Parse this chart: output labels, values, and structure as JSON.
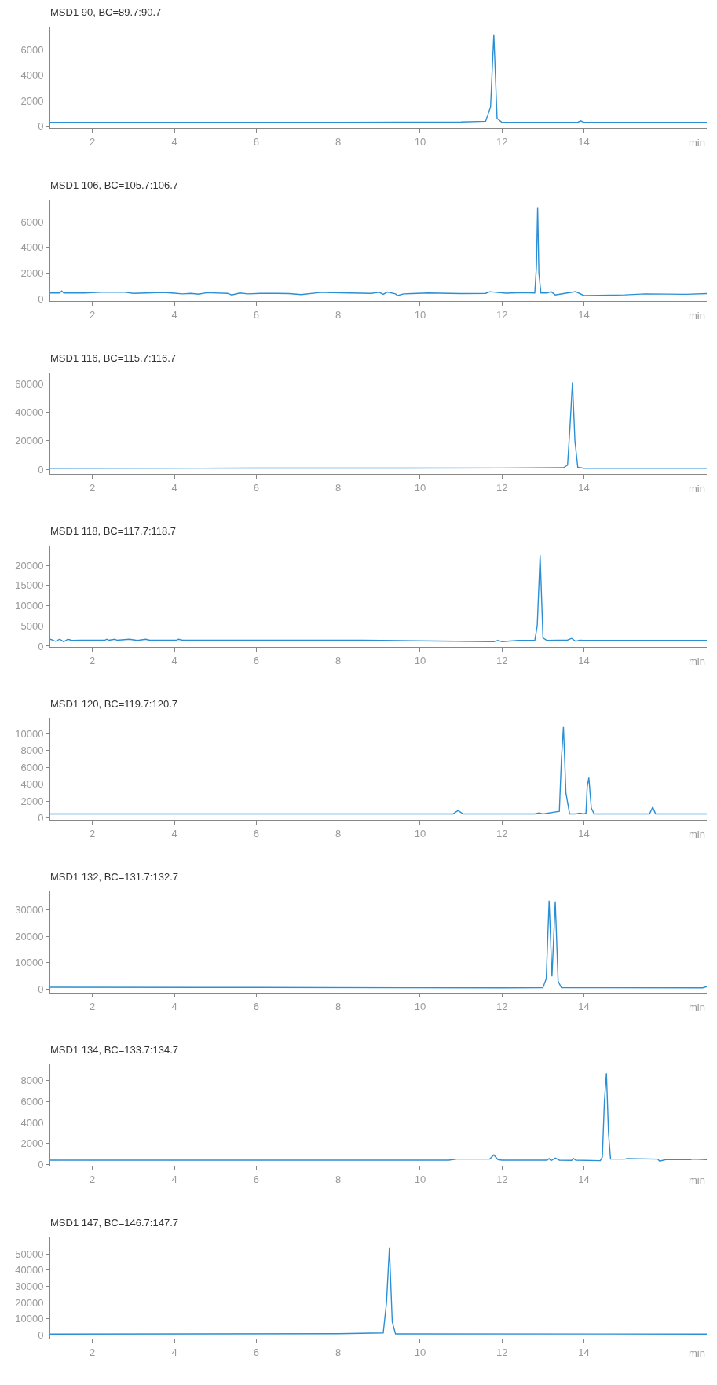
{
  "chart_data": [
    {
      "type": "line",
      "title": "MSD1 90, BC=89.7:90.7",
      "xlabel": "min",
      "color": "#2a8fd4",
      "xlim": [
        0.97,
        17.0
      ],
      "xticks": [
        2,
        4,
        6,
        8,
        10,
        12,
        14
      ],
      "ylim": [
        -150,
        7800
      ],
      "yticks": [
        0,
        2000,
        4000,
        6000
      ],
      "x": [
        0.97,
        2,
        4,
        6,
        8,
        10,
        11,
        11.6,
        11.72,
        11.8,
        11.88,
        12.0,
        13.85,
        13.92,
        14.0,
        17.0
      ],
      "values": [
        300,
        300,
        300,
        300,
        300,
        320,
        330,
        380,
        1500,
        7200,
        600,
        300,
        300,
        420,
        300,
        300
      ]
    },
    {
      "type": "line",
      "title": "MSD1 106, BC=105.7:106.7",
      "xlabel": "min",
      "color": "#2a8fd4",
      "xlim": [
        0.97,
        17.0
      ],
      "xticks": [
        2,
        4,
        6,
        8,
        10,
        12,
        14
      ],
      "ylim": [
        -180,
        7730
      ],
      "yticks": [
        0,
        2000,
        4000,
        6000
      ],
      "x": [
        0.97,
        1.2,
        1.25,
        1.3,
        1.8,
        2.2,
        2.8,
        3.0,
        3.6,
        3.8,
        4.0,
        4.2,
        4.4,
        4.6,
        4.8,
        5.3,
        5.4,
        5.6,
        5.8,
        6.1,
        6.5,
        6.8,
        7.1,
        7.6,
        7.8,
        8.3,
        8.8,
        9.0,
        9.1,
        9.2,
        9.4,
        9.45,
        9.6,
        9.8,
        10.2,
        11.0,
        11.6,
        11.7,
        12.1,
        12.5,
        12.8,
        12.84,
        12.87,
        12.9,
        12.95,
        13.1,
        13.2,
        13.3,
        13.5,
        13.8,
        14.0,
        15.0,
        15.5,
        16.5,
        17.0
      ],
      "values": [
        450,
        450,
        600,
        450,
        450,
        500,
        500,
        420,
        480,
        480,
        430,
        380,
        420,
        360,
        470,
        420,
        300,
        450,
        380,
        420,
        420,
        400,
        330,
        500,
        480,
        450,
        420,
        500,
        350,
        520,
        380,
        250,
        380,
        400,
        450,
        400,
        420,
        550,
        430,
        480,
        450,
        2500,
        7150,
        2000,
        450,
        450,
        550,
        300,
        400,
        550,
        250,
        300,
        380,
        350,
        400
      ]
    },
    {
      "type": "line",
      "title": "MSD1 116, BC=115.7:116.7",
      "xlabel": "min",
      "color": "#2a8fd4",
      "xlim": [
        0.97,
        17.0
      ],
      "xticks": [
        2,
        4,
        6,
        8,
        10,
        12,
        14
      ],
      "ylim": [
        -3200,
        67700
      ],
      "yticks": [
        0,
        20000,
        40000,
        60000
      ],
      "x": [
        0.97,
        6,
        12,
        13.5,
        13.6,
        13.66,
        13.72,
        13.78,
        13.85,
        14.0,
        17.0
      ],
      "values": [
        800,
        900,
        1000,
        1200,
        3000,
        30000,
        61000,
        20000,
        1500,
        800,
        700
      ]
    },
    {
      "type": "line",
      "title": "MSD1 118, BC=117.7:118.7",
      "xlabel": "min",
      "color": "#2a8fd4",
      "xlim": [
        0.97,
        17.0
      ],
      "xticks": [
        2,
        4,
        6,
        8,
        10,
        12,
        14
      ],
      "ylim": [
        -200,
        24900
      ],
      "yticks": [
        0,
        5000,
        10000,
        15000,
        20000
      ],
      "x": [
        0.97,
        1.1,
        1.2,
        1.3,
        1.4,
        1.5,
        1.7,
        2.3,
        2.35,
        2.4,
        2.55,
        2.6,
        2.9,
        3.1,
        3.3,
        3.4,
        4.05,
        4.1,
        4.2,
        8.6,
        11.8,
        11.9,
        12.0,
        12.4,
        12.8,
        12.86,
        12.93,
        13.0,
        13.1,
        13.6,
        13.7,
        13.8,
        13.9,
        14.0,
        17.0
      ],
      "values": [
        1700,
        1200,
        1700,
        1100,
        1700,
        1400,
        1450,
        1450,
        1700,
        1450,
        1700,
        1450,
        1700,
        1400,
        1700,
        1450,
        1450,
        1700,
        1450,
        1450,
        1100,
        1400,
        1100,
        1400,
        1400,
        5000,
        22500,
        2000,
        1400,
        1500,
        1900,
        1200,
        1450,
        1400,
        1400
      ]
    },
    {
      "type": "line",
      "title": "MSD1 120, BC=119.7:120.7",
      "xlabel": "min",
      "color": "#2a8fd4",
      "xlim": [
        0.97,
        17.0
      ],
      "xticks": [
        2,
        4,
        6,
        8,
        10,
        12,
        14
      ],
      "ylim": [
        -200,
        11800
      ],
      "yticks": [
        0,
        2000,
        4000,
        6000,
        8000,
        10000
      ],
      "x": [
        0.97,
        10.8,
        10.93,
        11.05,
        12.8,
        12.9,
        13.0,
        13.4,
        13.45,
        13.5,
        13.56,
        13.65,
        13.8,
        13.9,
        14.0,
        14.05,
        14.08,
        14.12,
        14.18,
        14.25,
        15.6,
        15.68,
        15.75,
        17.0
      ],
      "values": [
        500,
        500,
        900,
        500,
        500,
        620,
        500,
        800,
        7000,
        10800,
        3000,
        500,
        500,
        600,
        500,
        600,
        3700,
        4800,
        1200,
        500,
        500,
        1300,
        500,
        500
      ]
    },
    {
      "type": "line",
      "title": "MSD1 132, BC=131.7:132.7",
      "xlabel": "min",
      "color": "#2a8fd4",
      "xlim": [
        0.97,
        17.0
      ],
      "xticks": [
        2,
        4,
        6,
        8,
        10,
        12,
        14
      ],
      "ylim": [
        -1400,
        37000
      ],
      "yticks": [
        0,
        10000,
        20000,
        30000
      ],
      "x": [
        0.97,
        6,
        12,
        13.0,
        13.08,
        13.15,
        13.22,
        13.3,
        13.37,
        13.45,
        16.9,
        17.0
      ],
      "values": [
        700,
        600,
        450,
        500,
        4000,
        33500,
        4800,
        33200,
        3000,
        500,
        450,
        900
      ]
    },
    {
      "type": "line",
      "title": "MSD1 134, BC=133.7:134.7",
      "xlabel": "min",
      "color": "#2a8fd4",
      "xlim": [
        0.97,
        17.0
      ],
      "xticks": [
        2,
        4,
        6,
        8,
        10,
        12,
        14
      ],
      "ylim": [
        -130,
        9550
      ],
      "yticks": [
        0,
        2000,
        4000,
        6000,
        8000
      ],
      "x": [
        0.97,
        10.7,
        10.9,
        11.7,
        11.8,
        11.9,
        12.0,
        13.1,
        13.15,
        13.2,
        13.3,
        13.4,
        13.7,
        13.75,
        13.8,
        14.4,
        14.45,
        14.5,
        14.55,
        14.6,
        14.65,
        15.0,
        15.05,
        15.8,
        15.85,
        16.0,
        16.6,
        16.65,
        17.0
      ],
      "values": [
        400,
        400,
        500,
        500,
        900,
        450,
        400,
        400,
        550,
        350,
        600,
        400,
        380,
        550,
        400,
        350,
        700,
        6000,
        8700,
        3000,
        500,
        500,
        550,
        500,
        300,
        450,
        450,
        500,
        450
      ]
    },
    {
      "type": "line",
      "title": "MSD1 147, BC=146.7:147.7",
      "xlabel": "min",
      "color": "#2a8fd4",
      "xlim": [
        0.97,
        17.0
      ],
      "xticks": [
        2,
        4,
        6,
        8,
        10,
        12,
        14
      ],
      "ylim": [
        -2300,
        60200
      ],
      "yticks": [
        0,
        10000,
        20000,
        30000,
        40000,
        50000
      ],
      "x": [
        0.97,
        8,
        9.1,
        9.18,
        9.25,
        9.32,
        9.4,
        17.0
      ],
      "values": [
        500,
        700,
        1200,
        20000,
        53500,
        8000,
        600,
        500
      ]
    }
  ]
}
